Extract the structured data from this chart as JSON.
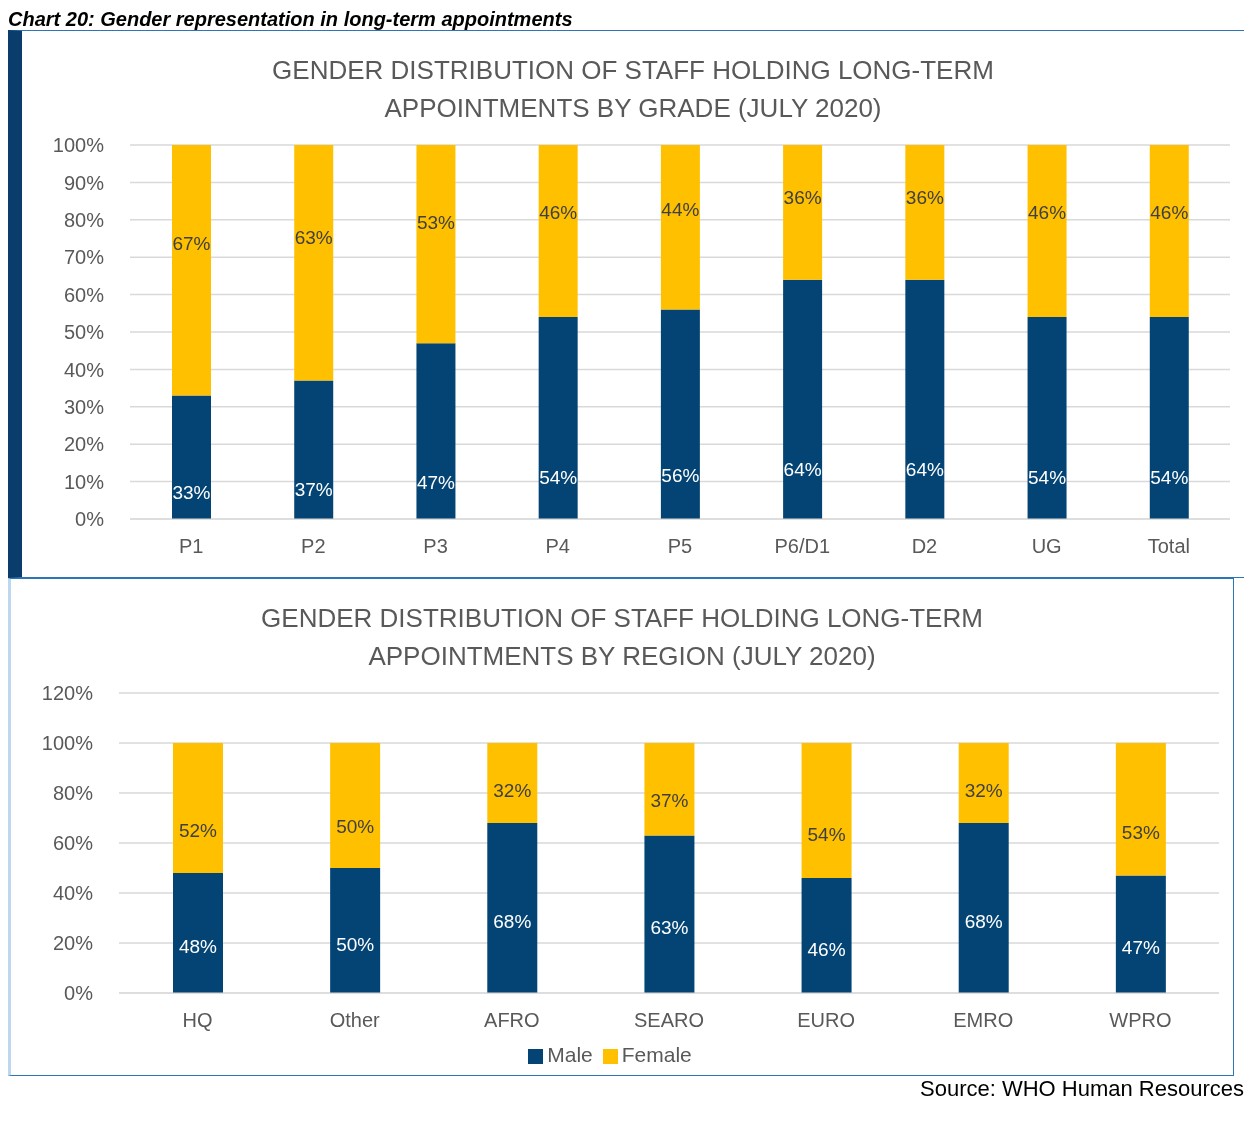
{
  "chart_data": [
    {
      "type": "bar",
      "title": "GENDER DISTRIBUTION OF STAFF HOLDING LONG-TERM APPOINTMENTS BY GRADE (JULY 2020)",
      "annotations": [
        "Chart 20: Gender representation in long-term appointments"
      ],
      "stacked": true,
      "categories": [
        "P1",
        "P2",
        "P3",
        "P4",
        "P5",
        "P6/D1",
        "D2",
        "UG",
        "Total"
      ],
      "series": [
        {
          "color": "#044474",
          "values": [
            33,
            37,
            47,
            54,
            56,
            64,
            64,
            54,
            54
          ],
          "value_labels": [
            "33%",
            "37%",
            "47%",
            "54%",
            "56%",
            "64%",
            "64%",
            "54%",
            "54%"
          ]
        },
        {
          "color": "#ffc000",
          "values": [
            67,
            63,
            53,
            46,
            44,
            36,
            36,
            46,
            46
          ],
          "value_labels": [
            "67%",
            "63%",
            "53%",
            "46%",
            "44%",
            "36%",
            "36%",
            "46%",
            "46%"
          ]
        }
      ],
      "ylim": [
        0,
        100
      ],
      "yticks": [
        {
          "value": 0,
          "label": "0%"
        },
        {
          "value": 10,
          "label": "10%"
        },
        {
          "value": 20,
          "label": "20%"
        },
        {
          "value": 30,
          "label": "30%"
        },
        {
          "value": 40,
          "label": "40%"
        },
        {
          "value": 50,
          "label": "50%"
        },
        {
          "value": 60,
          "label": "60%"
        },
        {
          "value": 70,
          "label": "70%"
        },
        {
          "value": 80,
          "label": "80%"
        },
        {
          "value": 90,
          "label": "90%"
        },
        {
          "value": 100,
          "label": "100%"
        }
      ],
      "grid": "y"
    },
    {
      "type": "bar",
      "title": "GENDER DISTRIBUTION OF STAFF HOLDING LONG-TERM APPOINTMENTS BY REGION (JULY 2020)",
      "annotations": [
        "Source: WHO Human Resources"
      ],
      "stacked": true,
      "categories": [
        "HQ",
        "Other",
        "AFRO",
        "SEARO",
        "EURO",
        "EMRO",
        "WPRO"
      ],
      "series": [
        {
          "name": "Male",
          "color": "#044474",
          "values": [
            48,
            50,
            68,
            63,
            46,
            68,
            47
          ],
          "value_labels": [
            "48%",
            "50%",
            "68%",
            "63%",
            "46%",
            "68%",
            "47%"
          ]
        },
        {
          "name": "Female",
          "color": "#ffc000",
          "values": [
            52,
            50,
            32,
            37,
            54,
            32,
            53
          ],
          "value_labels": [
            "52%",
            "50%",
            "32%",
            "37%",
            "54%",
            "32%",
            "53%"
          ]
        }
      ],
      "ylim": [
        0,
        120
      ],
      "yticks": [
        {
          "value": 0,
          "label": "0%"
        },
        {
          "value": 20,
          "label": "20%"
        },
        {
          "value": 40,
          "label": "40%"
        },
        {
          "value": 60,
          "label": "60%"
        },
        {
          "value": 80,
          "label": "80%"
        },
        {
          "value": 100,
          "label": "100%"
        },
        {
          "value": 120,
          "label": "120%"
        }
      ],
      "grid": "y",
      "legend": "bottom"
    }
  ]
}
